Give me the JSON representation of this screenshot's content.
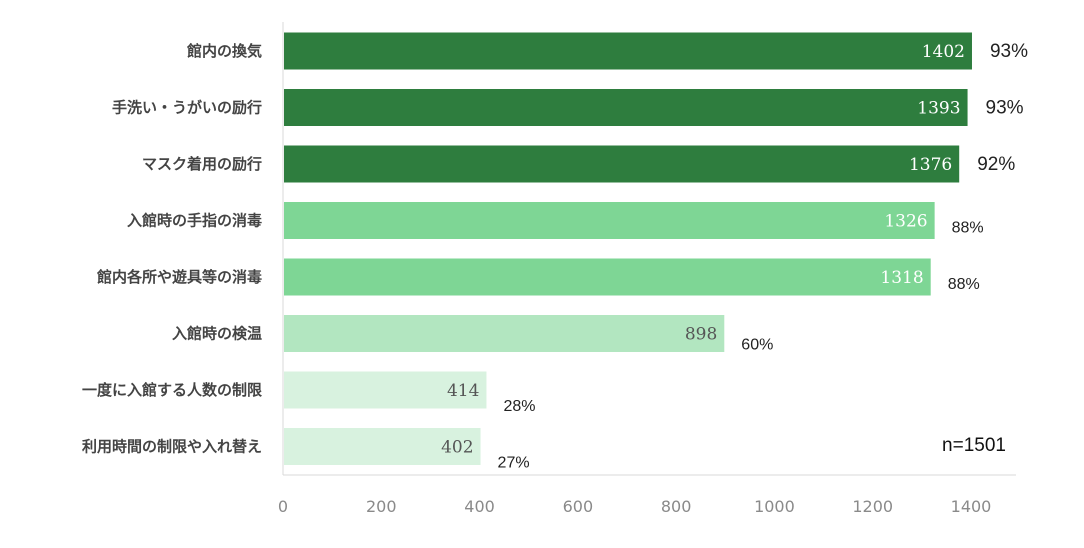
{
  "chart_data": {
    "type": "bar",
    "orientation": "horizontal",
    "categories": [
      "館内の換気",
      "手洗い・うがいの励行",
      "マスク着用の励行",
      "入館時の手指の消毒",
      "館内各所や遊具等の消毒",
      "入館時の検温",
      "一度に入館する人数の制限",
      "利用時間の制限や入れ替え"
    ],
    "values": [
      1402,
      1393,
      1376,
      1326,
      1318,
      898,
      414,
      402
    ],
    "value_labels": [
      "1402",
      "1393",
      "1376",
      "1326",
      "1318",
      "898",
      "414",
      "402"
    ],
    "percent_labels": [
      "93%",
      "93%",
      "92%",
      "88%",
      "88%",
      "60%",
      "28%",
      "27%"
    ],
    "bar_colors": [
      "#2e7d3e",
      "#2e7d3e",
      "#2e7d3e",
      "#7ed695",
      "#7ed695",
      "#b2e6c0",
      "#d8f2df",
      "#d8f2df"
    ],
    "value_label_colors": [
      "#ffffff",
      "#ffffff",
      "#ffffff",
      "#ffffff",
      "#ffffff",
      "#555555",
      "#555555",
      "#555555"
    ],
    "x_ticks": [
      "0",
      "200",
      "400",
      "600",
      "800",
      "1000",
      "1200",
      "1400"
    ],
    "xlim": [
      0,
      1500
    ],
    "annotation": "n=1501",
    "grid": false
  }
}
